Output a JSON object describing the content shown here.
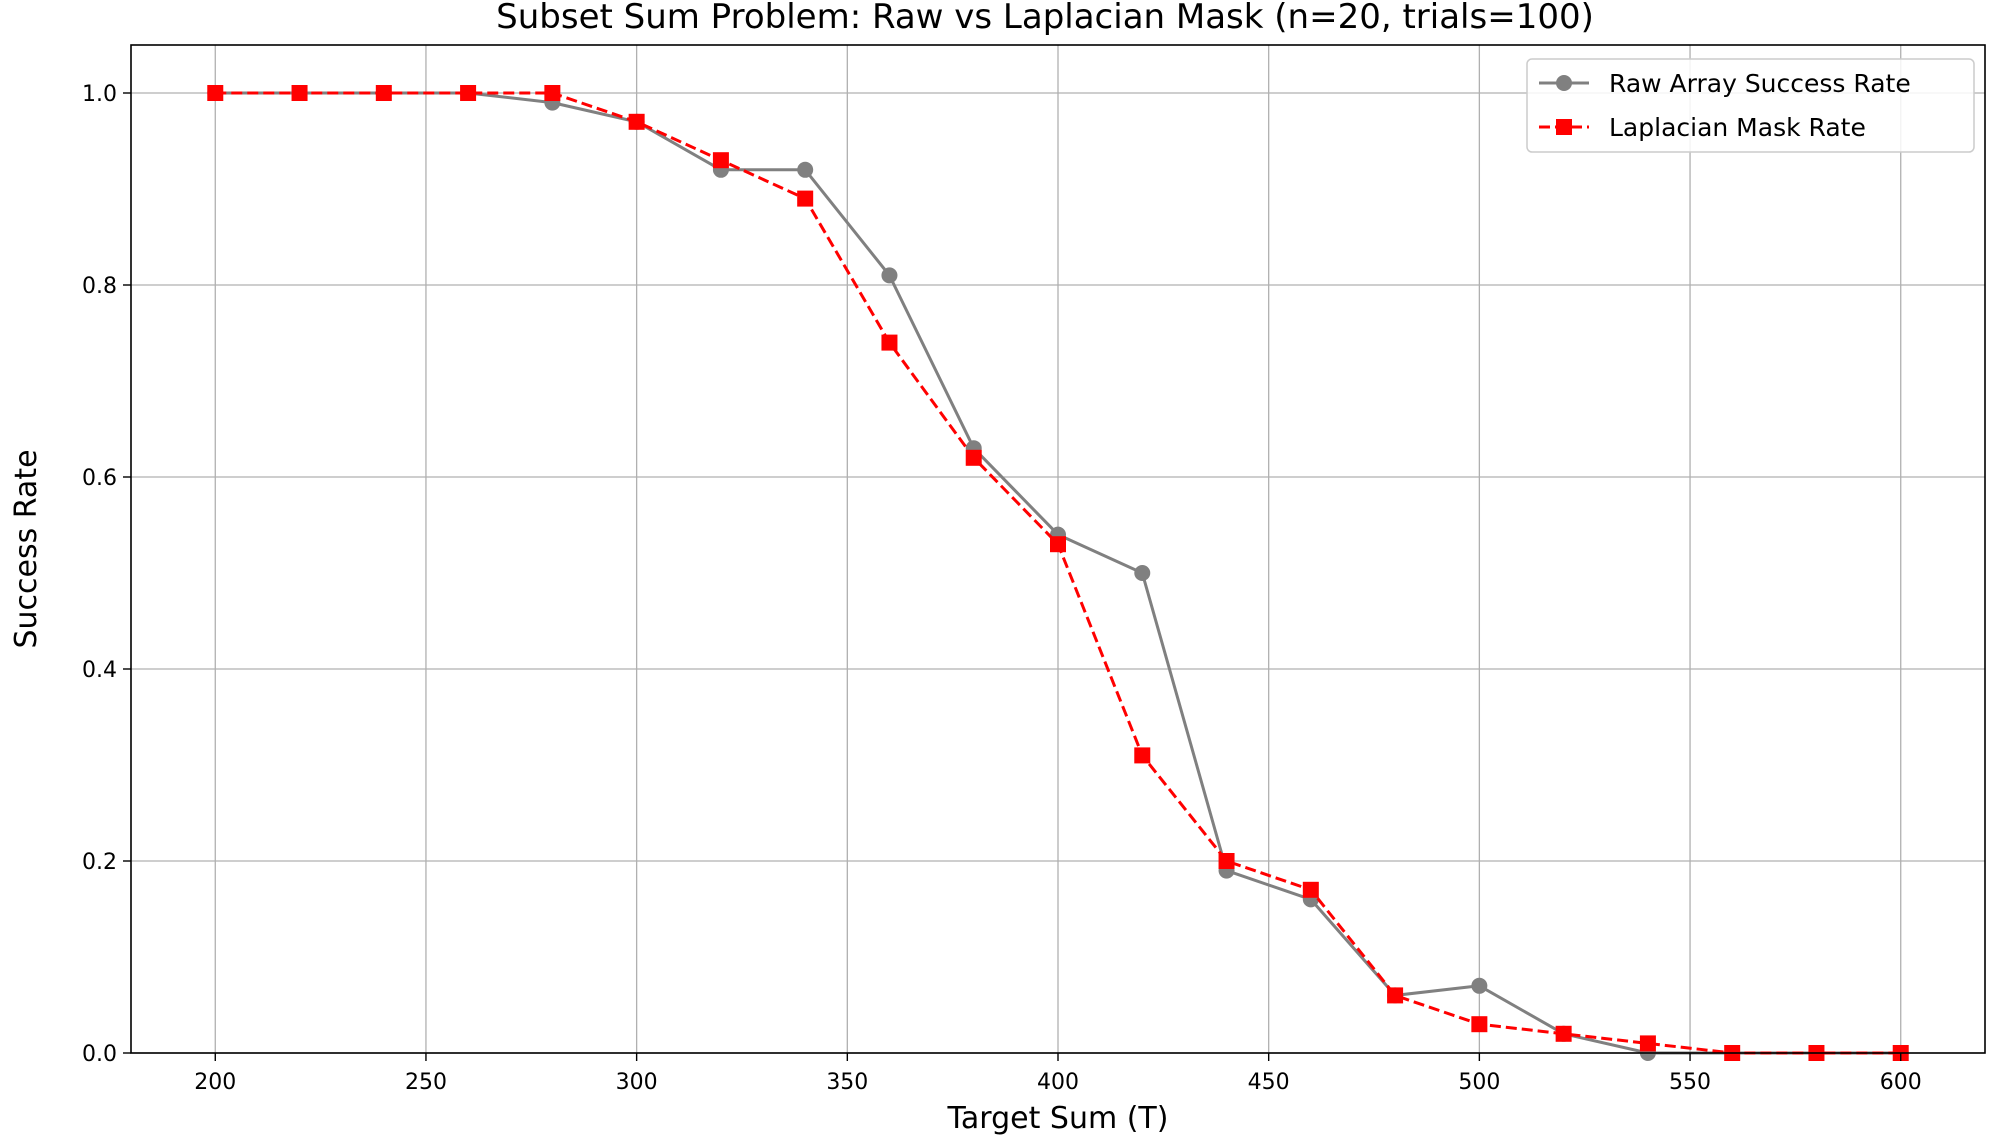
{
  "chart_data": {
    "type": "line",
    "title": "Subset Sum Problem: Raw vs Laplacian Mask (n=20, trials=100)",
    "xlabel": "Target Sum (T)",
    "ylabel": "Success Rate",
    "xlim": [
      180,
      620
    ],
    "ylim": [
      0,
      1.05
    ],
    "x_ticks": [
      200,
      250,
      300,
      350,
      400,
      450,
      500,
      550,
      600
    ],
    "y_ticks": [
      0.0,
      0.2,
      0.4,
      0.6,
      0.8,
      1.0
    ],
    "x_tick_labels": [
      "200",
      "250",
      "300",
      "350",
      "400",
      "450",
      "500",
      "550",
      "600"
    ],
    "y_tick_labels": [
      "0.0",
      "0.2",
      "0.4",
      "0.6",
      "0.8",
      "1.0"
    ],
    "grid": true,
    "legend_position": "top-right",
    "x": [
      200,
      220,
      240,
      260,
      280,
      300,
      320,
      340,
      360,
      380,
      400,
      420,
      440,
      460,
      480,
      500,
      520,
      540,
      560,
      580,
      600
    ],
    "series": [
      {
        "name": "Raw Array Success Rate",
        "color": "#808080",
        "line_style": "solid",
        "marker": "circle",
        "values": [
          1.0,
          1.0,
          1.0,
          1.0,
          0.99,
          0.97,
          0.92,
          0.92,
          0.81,
          0.63,
          0.54,
          0.5,
          0.19,
          0.16,
          0.06,
          0.07,
          0.02,
          0.0,
          0.0,
          0.0,
          0.0
        ]
      },
      {
        "name": "Laplacian Mask Rate",
        "color": "#ff0000",
        "line_style": "dashed",
        "marker": "square",
        "values": [
          1.0,
          1.0,
          1.0,
          1.0,
          1.0,
          0.97,
          0.93,
          0.89,
          0.74,
          0.62,
          0.53,
          0.31,
          0.2,
          0.17,
          0.06,
          0.03,
          0.02,
          0.01,
          0.0,
          0.0,
          0.0
        ]
      }
    ]
  }
}
